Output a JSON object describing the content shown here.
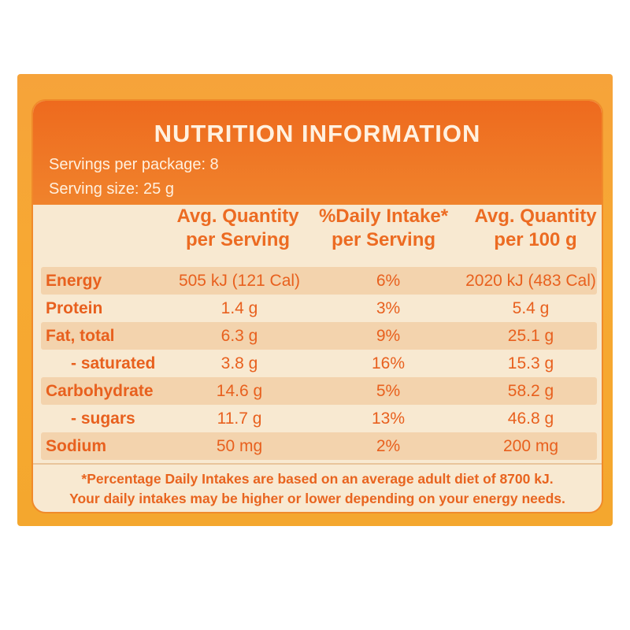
{
  "panel": {
    "title": "NUTRITION INFORMATION",
    "servings_per_package": "Servings per package: 8",
    "serving_size": "Serving size: 25 g"
  },
  "columns": {
    "c1": [
      "Avg. Quantity",
      "per Serving"
    ],
    "c2": [
      "%Daily Intake*",
      "per Serving"
    ],
    "c3": [
      "Avg. Quantity",
      "per 100 g"
    ]
  },
  "rows": [
    {
      "name": "Energy",
      "per_serving": "505 kJ (121 Cal)",
      "daily_intake": "6%",
      "per_100g": "2020 kJ (483 Cal)"
    },
    {
      "name": "Protein",
      "per_serving": "1.4 g",
      "daily_intake": "3%",
      "per_100g": "5.4 g"
    },
    {
      "name": "Fat, total",
      "per_serving": "6.3 g",
      "daily_intake": "9%",
      "per_100g": "25.1 g"
    },
    {
      "name": "- saturated",
      "per_serving": "3.8 g",
      "daily_intake": "16%",
      "per_100g": "15.3 g"
    },
    {
      "name": "Carbohydrate",
      "per_serving": "14.6 g",
      "daily_intake": "5%",
      "per_100g": "58.2 g"
    },
    {
      "name": "- sugars",
      "per_serving": "11.7 g",
      "daily_intake": "13%",
      "per_100g": "46.8 g"
    },
    {
      "name": "Sodium",
      "per_serving": "50 mg",
      "daily_intake": "2%",
      "per_100g": "200 mg"
    }
  ],
  "footnote": {
    "line1": "*Percentage Daily Intakes are based on an average adult diet of 8700 kJ.",
    "line2": "Your daily intakes may be higher or lower depending on your energy needs."
  },
  "colors": {
    "header_orange": "#ee6a1e",
    "text_orange": "#e8601e",
    "panel_cream": "#f8e9d1",
    "row_shade": "#f3d3ad",
    "outer_gold": "#f6a33a"
  }
}
